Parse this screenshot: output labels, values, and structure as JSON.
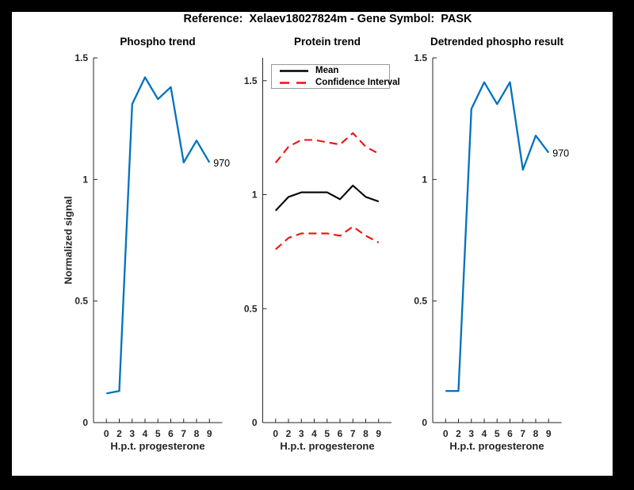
{
  "figure": {
    "title": "Reference:  Xelaev18027824m - Gene Symbol:  PASK",
    "frame_color": "#000000",
    "canvas_color": "#ffffff",
    "axis_color": "#262626"
  },
  "shared": {
    "xlabel": "H.p.t. progesterone",
    "ylabel": "Normalized signal"
  },
  "legend": {
    "entries": [
      {
        "label": "Mean",
        "color": "#000000",
        "style": "solid"
      },
      {
        "label": "Confidence Interval",
        "color": "#f01010",
        "style": "dashed"
      }
    ]
  },
  "chart_data": [
    {
      "type": "line",
      "title": "Phospho trend",
      "xlabel": "H.p.t. progesterone",
      "ylabel": "Normalized signal",
      "x_tick_labels": [
        "0",
        "2",
        "3",
        "4",
        "5",
        "6",
        "7",
        "8",
        "9"
      ],
      "yticks": [
        0,
        0.5,
        1,
        1.5
      ],
      "ytick_labels": [
        "0",
        "0.5",
        "1",
        "1.5"
      ],
      "ylim": [
        0,
        1.5
      ],
      "grid": false,
      "series": [
        {
          "name": "phospho-signal",
          "color": "#0072BD",
          "style": "solid",
          "values": [
            0.12,
            0.13,
            1.31,
            1.42,
            1.33,
            1.38,
            1.07,
            1.16,
            1.07
          ]
        }
      ],
      "end_annotation": "970"
    },
    {
      "type": "line",
      "title": "Protein trend",
      "xlabel": "H.p.t. progesterone",
      "ylabel": "",
      "x_tick_labels": [
        "0",
        "2",
        "3",
        "4",
        "5",
        "6",
        "7",
        "8",
        "9"
      ],
      "yticks": [
        0,
        0.5,
        1,
        1.5
      ],
      "ytick_labels": [
        "0",
        "0.5",
        "1",
        "1.5"
      ],
      "ylim": [
        0,
        1.6
      ],
      "grid": false,
      "legend_position": "northwest",
      "series": [
        {
          "name": "mean",
          "color": "#000000",
          "style": "solid",
          "values": [
            0.93,
            0.99,
            1.01,
            1.01,
            1.01,
            0.98,
            1.04,
            0.99,
            0.97
          ]
        },
        {
          "name": "confidence-upper",
          "color": "#f01010",
          "style": "dashed",
          "values": [
            1.14,
            1.21,
            1.24,
            1.24,
            1.23,
            1.22,
            1.27,
            1.21,
            1.18
          ]
        },
        {
          "name": "confidence-lower",
          "color": "#f01010",
          "style": "dashed",
          "values": [
            0.76,
            0.81,
            0.83,
            0.83,
            0.83,
            0.82,
            0.86,
            0.82,
            0.79
          ]
        }
      ],
      "end_annotation": ""
    },
    {
      "type": "line",
      "title": "Detrended phospho result",
      "xlabel": "H.p.t. progesterone",
      "ylabel": "",
      "x_tick_labels": [
        "0",
        "2",
        "3",
        "4",
        "5",
        "6",
        "7",
        "8",
        "9"
      ],
      "yticks": [
        0,
        0.5,
        1,
        1.5
      ],
      "ytick_labels": [
        "0",
        "0.5",
        "1",
        "1.5"
      ],
      "ylim": [
        0,
        1.5
      ],
      "grid": false,
      "series": [
        {
          "name": "detrended-phospho-signal",
          "color": "#0072BD",
          "style": "solid",
          "values": [
            0.13,
            0.13,
            1.29,
            1.4,
            1.31,
            1.4,
            1.04,
            1.18,
            1.11
          ]
        }
      ],
      "end_annotation": "970"
    }
  ]
}
